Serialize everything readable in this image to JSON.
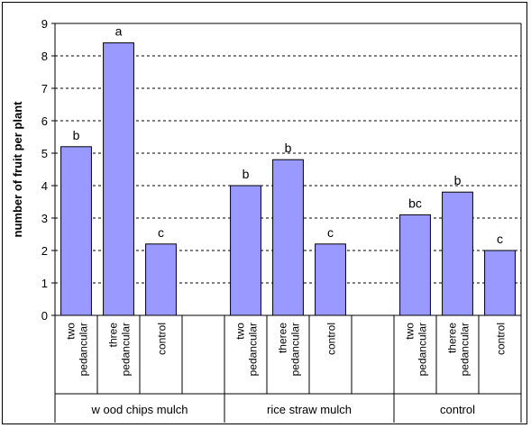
{
  "chart_data": {
    "type": "bar",
    "title": "",
    "xlabel": "",
    "ylabel": "number of fruit per plant",
    "ylim": [
      0,
      9
    ],
    "y_ticks": [
      0,
      1,
      2,
      3,
      4,
      5,
      6,
      7,
      8,
      9
    ],
    "grid": "horizontal dashed",
    "legend": "none",
    "bar_color": "#9999ff",
    "groups": [
      {
        "name": "w ood chips mulch",
        "categories": [
          {
            "label_lines": [
              "two",
              "pedancular"
            ],
            "value": 5.2,
            "letter": "b"
          },
          {
            "label_lines": [
              "three",
              "pedancular"
            ],
            "value": 8.4,
            "letter": "a"
          },
          {
            "label_lines": [
              "control"
            ],
            "value": 2.2,
            "letter": "c"
          },
          {
            "label_lines": [],
            "value": null,
            "letter": ""
          }
        ]
      },
      {
        "name": "rice straw  mulch",
        "categories": [
          {
            "label_lines": [
              "two",
              "pedancular"
            ],
            "value": 4.0,
            "letter": "b"
          },
          {
            "label_lines": [
              "theree",
              "pedancular"
            ],
            "value": 4.8,
            "letter": "b"
          },
          {
            "label_lines": [
              "control"
            ],
            "value": 2.2,
            "letter": "c"
          },
          {
            "label_lines": [],
            "value": null,
            "letter": ""
          }
        ]
      },
      {
        "name": "control",
        "categories": [
          {
            "label_lines": [
              "two",
              "pedancular"
            ],
            "value": 3.1,
            "letter": "bc"
          },
          {
            "label_lines": [
              "theree",
              "pedancular"
            ],
            "value": 3.8,
            "letter": "b"
          },
          {
            "label_lines": [
              "control"
            ],
            "value": 2.0,
            "letter": "c"
          }
        ]
      }
    ]
  }
}
